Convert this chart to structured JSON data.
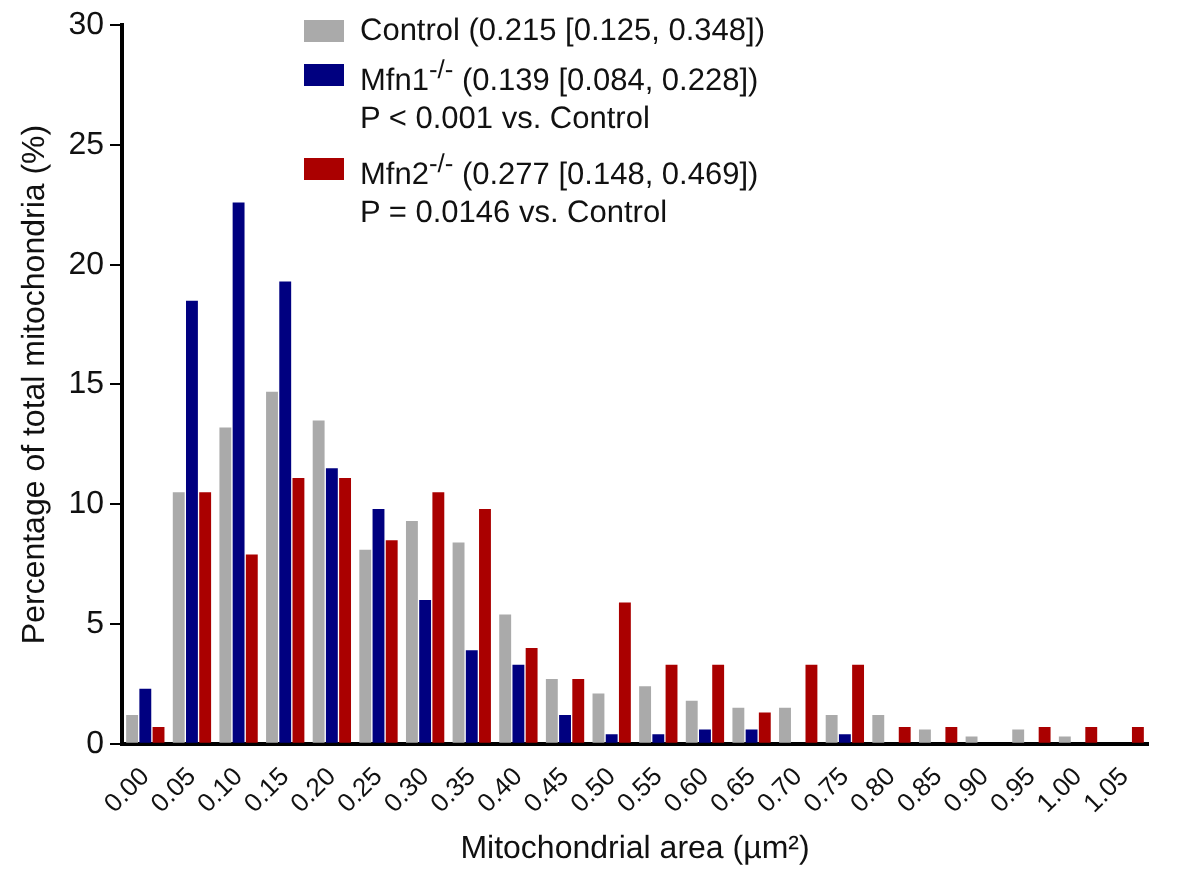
{
  "chart_data": {
    "type": "bar",
    "xlabel": "Mitochondrial area (µm²)",
    "ylabel": "Percentage of total mitochondria (%)",
    "categories": [
      "0.00",
      "0.05",
      "0.10",
      "0.15",
      "0.20",
      "0.25",
      "0.30",
      "0.35",
      "0.40",
      "0.45",
      "0.50",
      "0.55",
      "0.60",
      "0.65",
      "0.70",
      "0.75",
      "0.80",
      "0.85",
      "0.90",
      "0.95",
      "1.00",
      "1.05"
    ],
    "series": [
      {
        "name": "Control (0.215 [0.125, 0.348])",
        "color": "#aaaaaa",
        "values": [
          1.2,
          10.5,
          13.2,
          14.7,
          13.5,
          8.1,
          9.3,
          8.4,
          5.4,
          2.7,
          2.1,
          2.4,
          1.8,
          1.5,
          1.5,
          1.2,
          1.2,
          0.6,
          0.3,
          0.6,
          0.3,
          0
        ]
      },
      {
        "name": "Mfn1$^{-/-}$ (0.139 [0.084, 0.228])",
        "color": "#000080",
        "values": [
          2.3,
          18.5,
          22.6,
          19.3,
          11.5,
          9.8,
          6.0,
          3.9,
          3.3,
          1.2,
          0.4,
          0.4,
          0.6,
          0.6,
          0,
          0.4,
          0,
          0,
          0,
          0,
          0,
          0
        ]
      },
      {
        "name": "Mfn2$^{-/-}$ (0.277 [0.148, 0.469])",
        "color": "#aa0000",
        "values": [
          0.7,
          10.5,
          7.9,
          11.1,
          11.1,
          8.5,
          10.5,
          9.8,
          4.0,
          2.7,
          5.9,
          3.3,
          3.3,
          1.3,
          3.3,
          3.3,
          0.7,
          0.7,
          0,
          0.7,
          0.7,
          0.7
        ]
      }
    ],
    "annotations": [
      "P < 0.001 vs. Control",
      "P = 0.0146 vs. Control"
    ],
    "ylim": [
      0,
      30
    ],
    "yticks": [
      0,
      5,
      10,
      15,
      20,
      25,
      30
    ],
    "grid": false,
    "legend": "top"
  }
}
